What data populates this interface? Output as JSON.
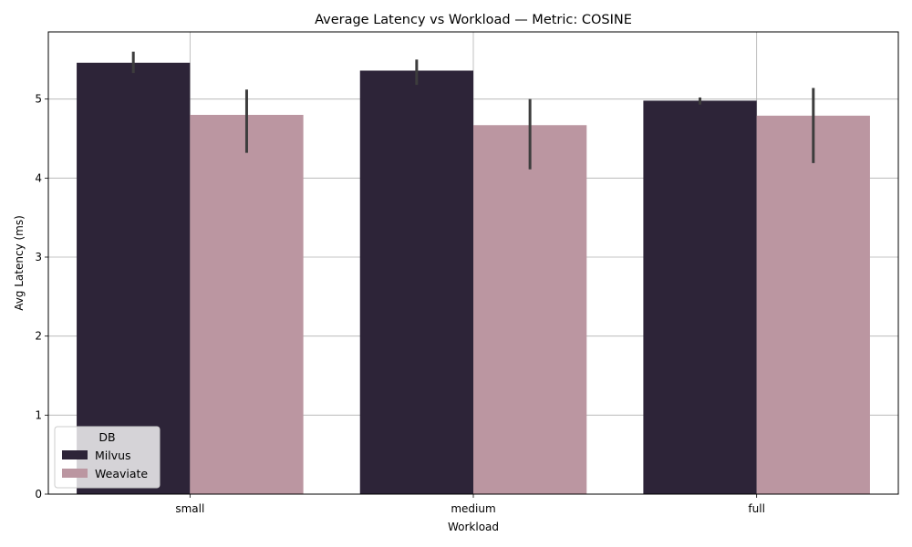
{
  "chart_data": {
    "type": "bar",
    "title": "Average Latency vs Workload — Metric: COSINE",
    "xlabel": "Workload",
    "ylabel": "Avg Latency (ms)",
    "categories": [
      "small",
      "medium",
      "full"
    ],
    "ylim": [
      0,
      5.85
    ],
    "yticks": [
      0,
      1,
      2,
      3,
      4,
      5
    ],
    "grid": true,
    "legend": {
      "title": "DB",
      "position": "lower-left"
    },
    "series": [
      {
        "name": "Milvus",
        "color": "#2d2438",
        "values": [
          5.46,
          5.36,
          4.98
        ],
        "error_low": [
          5.33,
          5.18,
          4.93
        ],
        "error_high": [
          5.6,
          5.5,
          5.02
        ]
      },
      {
        "name": "Weaviate",
        "color": "#bb96a1",
        "values": [
          4.8,
          4.67,
          4.79
        ],
        "error_low": [
          4.32,
          4.11,
          4.19
        ],
        "error_high": [
          5.12,
          5.0,
          5.14
        ]
      }
    ]
  }
}
